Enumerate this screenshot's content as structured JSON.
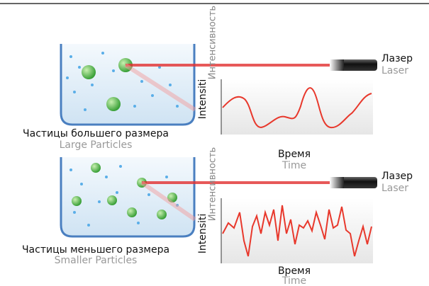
{
  "panels": [
    {
      "particles_label": "Частицы большего размера",
      "particles_label_en": "Large Particles",
      "laser": "Лазер",
      "laser_en": "Laser",
      "y_axis": "Интенсивность",
      "y_axis_en": "Intensiti",
      "x_axis": "Время",
      "x_axis_en": "Time"
    },
    {
      "particles_label": "Частицы меньшего размера",
      "particles_label_en": "Smaller Particles",
      "laser": "Лазер",
      "laser_en": "Laser",
      "y_axis": "Интенсивность",
      "y_axis_en": "Intensiti",
      "x_axis": "Время",
      "x_axis_en": "Time"
    }
  ]
}
